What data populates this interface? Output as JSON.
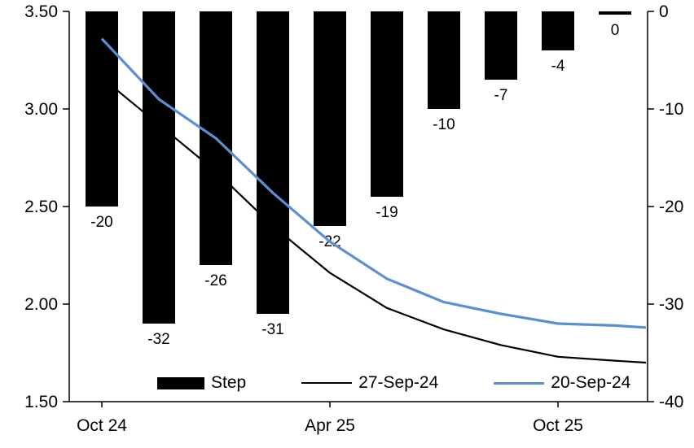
{
  "chart_data": {
    "type": "bar",
    "subtype": "combo-bar-line-dual-axis",
    "title": "",
    "x_axis": {
      "tick_labels": [
        "Oct 24",
        "Apr 25",
        "Oct 25"
      ],
      "tick_positions": [
        0,
        4,
        8
      ]
    },
    "left_axis": {
      "min": 1.5,
      "max": 3.5,
      "tick_labels": [
        "3.50",
        "3.00",
        "2.50",
        "2.00",
        "1.50"
      ],
      "tick_values": [
        3.5,
        3.0,
        2.5,
        2.0,
        1.5
      ]
    },
    "right_axis": {
      "min": -40,
      "max": 0,
      "tick_labels": [
        "0",
        "-10",
        "-20",
        "-30",
        "-40"
      ],
      "tick_values": [
        0,
        -10,
        -20,
        -30,
        -40
      ]
    },
    "bar_series": {
      "name": "Step",
      "axis": "right",
      "color": "#000000",
      "values": [
        -20,
        -32,
        -26,
        -31,
        -22,
        -19,
        -10,
        -7,
        -4,
        0
      ],
      "labels": [
        "-20",
        "-32",
        "-26",
        "-31",
        "-22",
        "-19",
        "-10",
        "-7",
        "-4",
        "0"
      ]
    },
    "line_series": [
      {
        "name": "27-Sep-24",
        "axis": "left",
        "color": "#000000",
        "stroke_width": 2.2,
        "values": [
          3.16,
          2.92,
          2.68,
          2.4,
          2.16,
          1.98,
          1.87,
          1.79,
          1.73,
          1.71,
          1.7
        ]
      },
      {
        "name": "20-Sep-24",
        "axis": "left",
        "color": "#5B8FD4",
        "stroke_width": 3.2,
        "values": [
          3.36,
          3.05,
          2.85,
          2.57,
          2.32,
          2.13,
          2.01,
          1.95,
          1.9,
          1.89,
          1.88
        ]
      }
    ],
    "legend": {
      "position": "bottom",
      "items": [
        "Step",
        "27-Sep-24",
        "20-Sep-24"
      ]
    },
    "grid": "off"
  }
}
